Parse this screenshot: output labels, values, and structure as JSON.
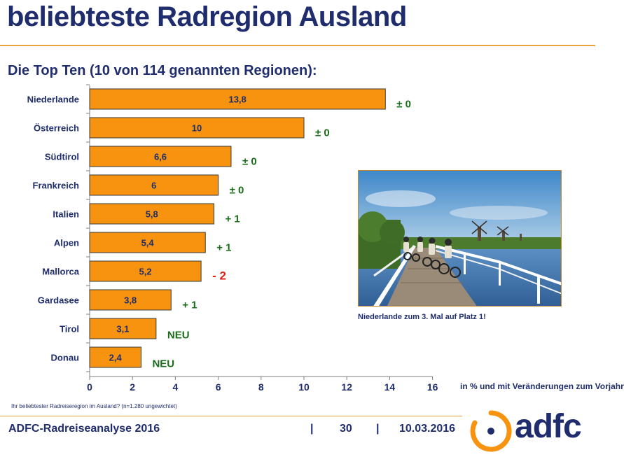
{
  "title": "beliebteste Radregion Ausland",
  "subtitle": "Die Top Ten (10 von 114 genannten Regionen):",
  "chart_data": {
    "type": "bar",
    "orientation": "horizontal",
    "categories": [
      "Niederlande",
      "Österreich",
      "Südtirol",
      "Frankreich",
      "Italien",
      "Alpen",
      "Mallorca",
      "Gardasee",
      "Tirol",
      "Donau"
    ],
    "values": [
      13.8,
      10,
      6.6,
      6,
      5.8,
      5.4,
      5.2,
      3.8,
      3.1,
      2.4
    ],
    "value_labels": [
      "13,8",
      "10",
      "6,6",
      "6",
      "5,8",
      "5,4",
      "5,2",
      "3,8",
      "3,1",
      "2,4"
    ],
    "changes": [
      "± 0",
      "± 0",
      "± 0",
      "± 0",
      "+ 1",
      "+ 1",
      "- 2",
      "+ 1",
      "NEU",
      "NEU"
    ],
    "change_colors": [
      "#1a6e1a",
      "#1a6e1a",
      "#1a6e1a",
      "#1a6e1a",
      "#1a6e1a",
      "#1a6e1a",
      "#e0201b",
      "#1a6e1a",
      "#1a6e1a",
      "#1a6e1a"
    ],
    "xlim": [
      0,
      16
    ],
    "xticks": [
      0,
      2,
      4,
      6,
      8,
      10,
      12,
      14,
      16
    ],
    "xlabel": "in % und mit Veränderungen zum Vorjahr",
    "bar_color": "#f7930e",
    "grid": false
  },
  "photo_caption": "Niederlande zum 3. Mal auf Platz 1!",
  "footnote": "Ihr beliebtester Radreiseregion im Ausland? (n=1.280 ungewichtet)",
  "footer": {
    "report": "ADFC-Radreiseanalyse 2016",
    "sep1": "|",
    "page": "30",
    "sep2": "|",
    "date": "10.03.2016"
  },
  "logo": {
    "text": "adfc"
  }
}
